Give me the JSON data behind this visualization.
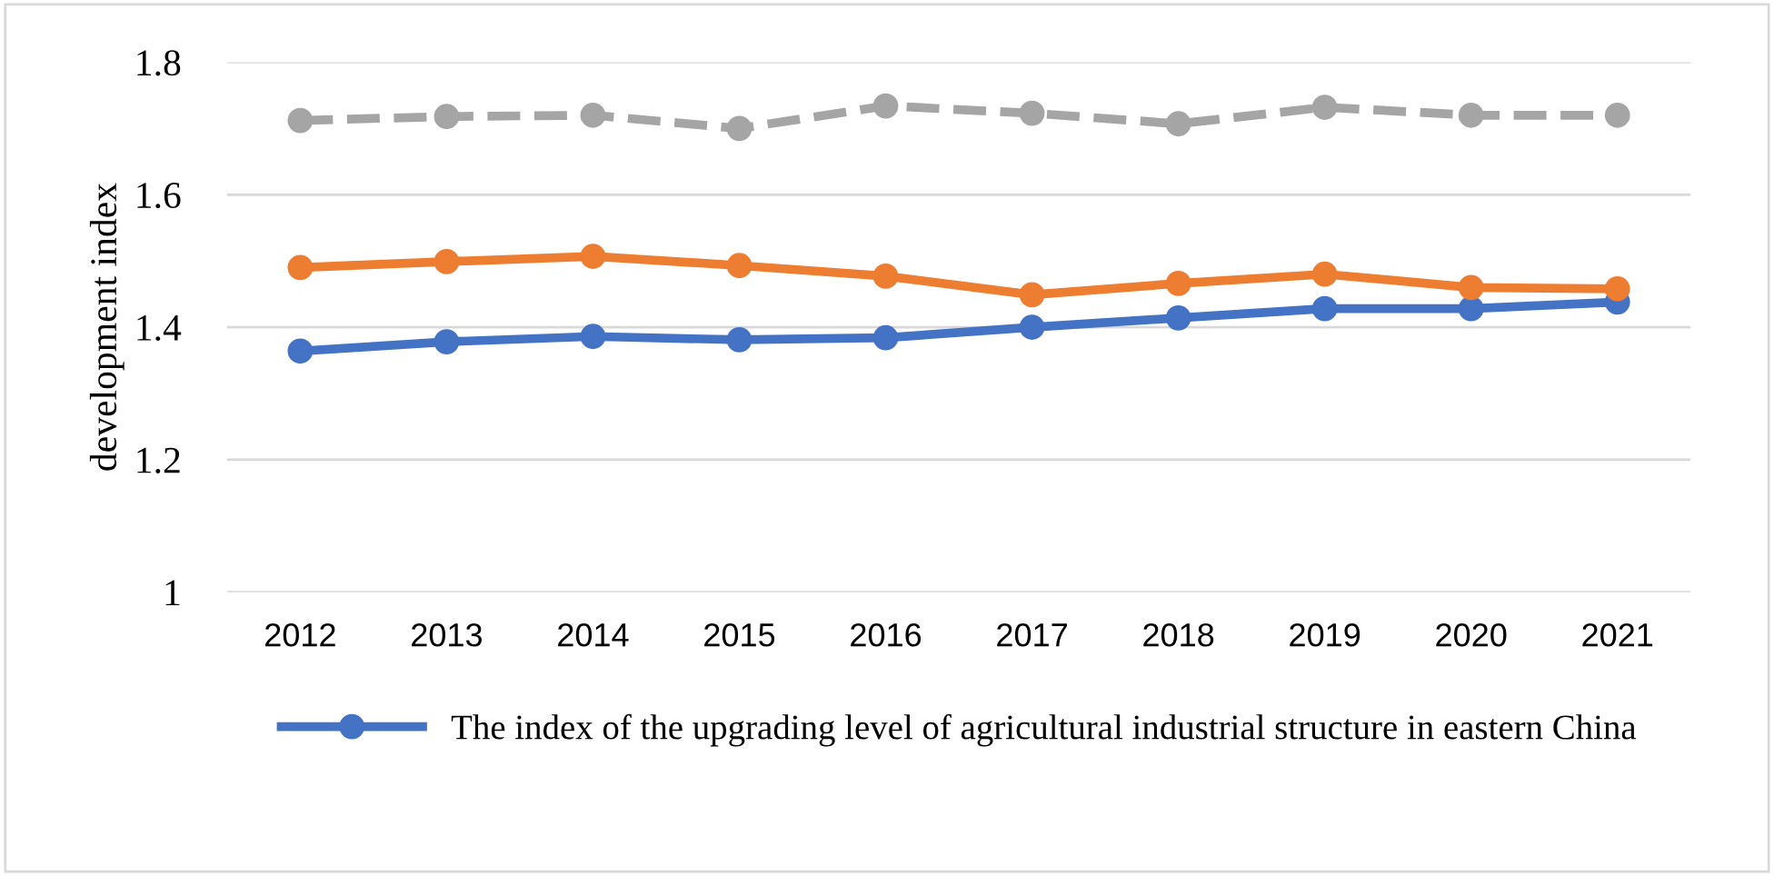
{
  "chart_data": {
    "type": "line",
    "ylabel": "development index",
    "categories": [
      "2012",
      "2013",
      "2014",
      "2015",
      "2016",
      "2017",
      "2018",
      "2019",
      "2020",
      "2021"
    ],
    "series": [
      {
        "name": "The index of the upgrading level of agricultural industrial structure in eastern China",
        "color": "#4472c4",
        "values": [
          1.364,
          1.378,
          1.386,
          1.381,
          1.384,
          1.4,
          1.414,
          1.428,
          1.428,
          1.438
        ]
      },
      {
        "color": "#ed7d31",
        "values": [
          1.49,
          1.499,
          1.507,
          1.493,
          1.477,
          1.449,
          1.466,
          1.48,
          1.46,
          1.458
        ]
      },
      {
        "color": "#a5a5a5",
        "line_style": "dashed",
        "values": [
          1.712,
          1.718,
          1.72,
          1.7,
          1.734,
          1.723,
          1.707,
          1.732,
          1.72,
          1.72
        ]
      }
    ],
    "ylim": [
      1,
      1.8
    ],
    "yticks": [
      1,
      1.2,
      1.4,
      1.6,
      1.8
    ],
    "grid": "y",
    "legend": "bottom",
    "marker": "circle"
  }
}
